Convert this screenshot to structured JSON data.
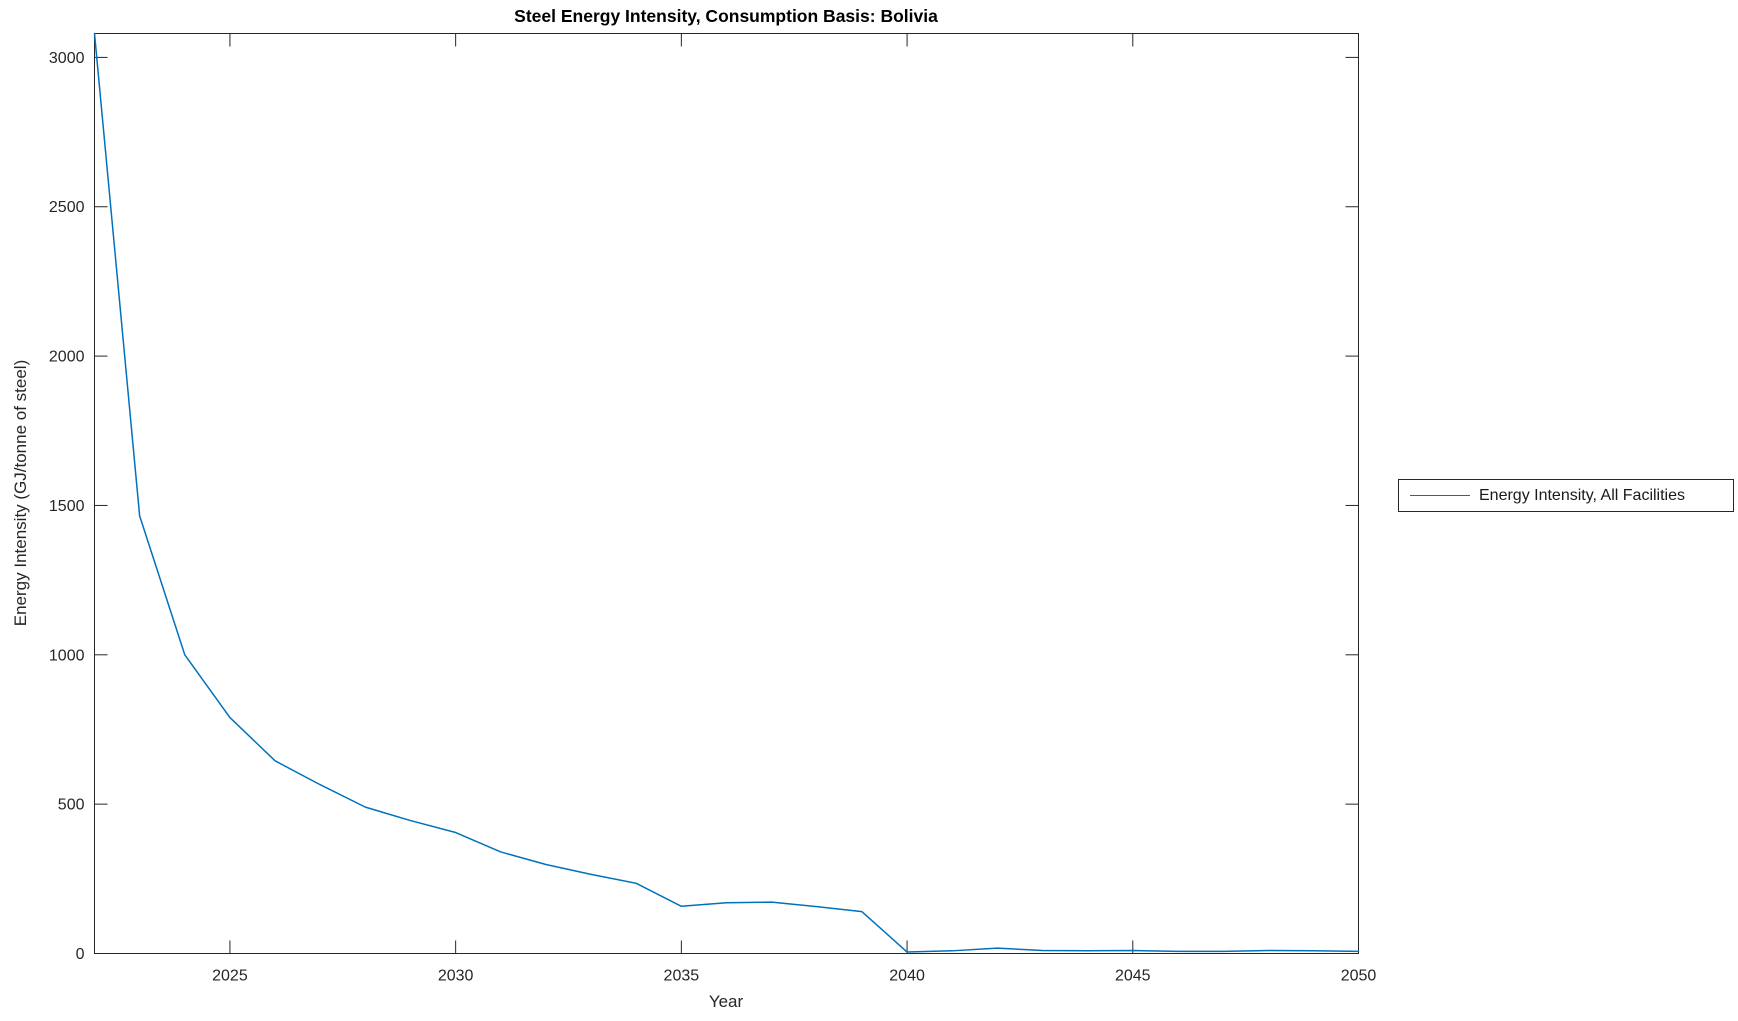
{
  "figure": {
    "background": "#ffffff"
  },
  "chart_data": {
    "type": "line",
    "title": "Steel Energy Intensity, Consumption Basis: Bolivia",
    "xlabel": "Year",
    "ylabel": "Energy Intensity (GJ/tonne of steel)",
    "xlim": [
      2022,
      2050
    ],
    "ylim": [
      0,
      3080
    ],
    "x_ticks": [
      2025,
      2030,
      2035,
      2040,
      2045,
      2050
    ],
    "y_ticks": [
      0,
      500,
      1000,
      1500,
      2000,
      2500,
      3000
    ],
    "grid": false,
    "axis_color": "#262626",
    "tick_label_color": "#262626",
    "legend": {
      "position": "outside-right",
      "entries": [
        {
          "label": "Energy Intensity, All Facilities",
          "color": "#0072BD"
        }
      ]
    },
    "series": [
      {
        "name": "Energy Intensity, All Facilities",
        "color": "#0072BD",
        "x": [
          2022,
          2023,
          2024,
          2025,
          2026,
          2027,
          2028,
          2029,
          2030,
          2031,
          2032,
          2033,
          2034,
          2035,
          2036,
          2037,
          2038,
          2039,
          2040,
          2041,
          2042,
          2043,
          2044,
          2045,
          2046,
          2047,
          2048,
          2049,
          2050
        ],
        "y": [
          3080,
          1465,
          1000,
          790,
          645,
          565,
          490,
          445,
          405,
          340,
          298,
          265,
          235,
          158,
          170,
          172,
          157,
          140,
          5,
          9,
          18,
          10,
          9,
          10,
          7,
          7,
          10,
          9,
          7
        ]
      }
    ]
  }
}
